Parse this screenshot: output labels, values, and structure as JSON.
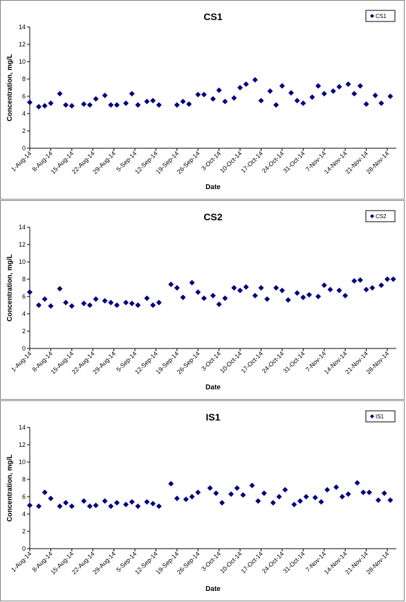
{
  "chart_data": [
    {
      "type": "scatter",
      "title": "CS1",
      "xlabel": "Date",
      "ylabel": "Concentration, mg/L",
      "ylim": [
        0,
        14
      ],
      "yticks": [
        0,
        2,
        4,
        6,
        8,
        10,
        12,
        14
      ],
      "xlim": [
        "2014-08-01",
        "2014-12-01"
      ],
      "xticks": [
        "1-Aug-14",
        "8-Aug-14",
        "15-Aug-14",
        "22-Aug-14",
        "29-Aug-14",
        "5-Sep-14",
        "12-Sep-14",
        "19-Sep-14",
        "26-Sep-14",
        "3-Oct-14",
        "10-Oct-14",
        "17-Oct-14",
        "24-Oct-14",
        "31-Oct-14",
        "7-Nov-14",
        "14-Nov-14",
        "21-Nov-14",
        "28-Nov-14"
      ],
      "legend_position": "top-right",
      "grid": false,
      "series": [
        {
          "name": "CS1",
          "color": "#000080",
          "x": [
            "2014-08-01",
            "2014-08-04",
            "2014-08-06",
            "2014-08-08",
            "2014-08-11",
            "2014-08-13",
            "2014-08-15",
            "2014-08-19",
            "2014-08-21",
            "2014-08-23",
            "2014-08-26",
            "2014-08-28",
            "2014-08-30",
            "2014-09-02",
            "2014-09-04",
            "2014-09-06",
            "2014-09-09",
            "2014-09-11",
            "2014-09-13",
            "2014-09-19",
            "2014-09-21",
            "2014-09-23",
            "2014-09-26",
            "2014-09-28",
            "2014-10-01",
            "2014-10-03",
            "2014-10-05",
            "2014-10-08",
            "2014-10-10",
            "2014-10-12",
            "2014-10-15",
            "2014-10-17",
            "2014-10-20",
            "2014-10-22",
            "2014-10-24",
            "2014-10-27",
            "2014-10-29",
            "2014-10-31",
            "2014-11-03",
            "2014-11-05",
            "2014-11-07",
            "2014-11-10",
            "2014-11-12",
            "2014-11-15",
            "2014-11-17",
            "2014-11-19",
            "2014-11-21",
            "2014-11-24",
            "2014-11-26",
            "2014-11-29"
          ],
          "y": [
            5.3,
            4.8,
            4.9,
            5.2,
            6.3,
            5.0,
            4.9,
            5.1,
            5.0,
            5.7,
            6.1,
            5.0,
            5.0,
            5.2,
            6.3,
            5.0,
            5.4,
            5.5,
            5.0,
            5.0,
            5.4,
            5.1,
            6.2,
            6.2,
            5.7,
            6.7,
            5.4,
            5.8,
            7.0,
            7.4,
            7.9,
            5.5,
            6.6,
            5.0,
            7.2,
            6.4,
            5.5,
            5.2,
            5.9,
            7.2,
            6.3,
            6.6,
            7.1,
            7.4,
            6.3,
            7.2,
            5.1,
            6.1,
            5.2,
            6.0
          ]
        }
      ]
    },
    {
      "type": "scatter",
      "title": "CS2",
      "xlabel": "Date",
      "ylabel": "Concentration, mg/L",
      "ylim": [
        0,
        14
      ],
      "yticks": [
        0,
        2,
        4,
        6,
        8,
        10,
        12,
        14
      ],
      "xlim": [
        "2014-08-01",
        "2014-12-01"
      ],
      "xticks": [
        "1-Aug-14",
        "8-Aug-14",
        "15-Aug-14",
        "22-Aug-14",
        "29-Aug-14",
        "5-Sep-14",
        "12-Sep-14",
        "19-Sep-14",
        "26-Sep-14",
        "3-Oct-14",
        "10-Oct-14",
        "17-Oct-14",
        "24-Oct-14",
        "31-Oct-14",
        "7-Nov-14",
        "14-Nov-14",
        "21-Nov-14",
        "28-Nov-14"
      ],
      "legend_position": "top-right",
      "grid": false,
      "series": [
        {
          "name": "CS2",
          "color": "#000080",
          "x": [
            "2014-08-01",
            "2014-08-04",
            "2014-08-06",
            "2014-08-08",
            "2014-08-11",
            "2014-08-13",
            "2014-08-15",
            "2014-08-19",
            "2014-08-21",
            "2014-08-23",
            "2014-08-26",
            "2014-08-28",
            "2014-08-30",
            "2014-09-02",
            "2014-09-04",
            "2014-09-06",
            "2014-09-09",
            "2014-09-11",
            "2014-09-13",
            "2014-09-17",
            "2014-09-19",
            "2014-09-21",
            "2014-09-24",
            "2014-09-26",
            "2014-09-28",
            "2014-10-01",
            "2014-10-03",
            "2014-10-05",
            "2014-10-08",
            "2014-10-10",
            "2014-10-12",
            "2014-10-15",
            "2014-10-17",
            "2014-10-19",
            "2014-10-22",
            "2014-10-24",
            "2014-10-26",
            "2014-10-29",
            "2014-10-31",
            "2014-11-02",
            "2014-11-05",
            "2014-11-07",
            "2014-11-09",
            "2014-11-12",
            "2014-11-14",
            "2014-11-17",
            "2014-11-19",
            "2014-11-21",
            "2014-11-23",
            "2014-11-26",
            "2014-11-28",
            "2014-11-30"
          ],
          "y": [
            6.5,
            5.0,
            5.7,
            4.9,
            6.9,
            5.3,
            4.9,
            5.2,
            5.0,
            5.7,
            5.5,
            5.3,
            5.0,
            5.3,
            5.2,
            5.0,
            5.8,
            5.0,
            5.3,
            7.4,
            7.0,
            5.9,
            7.6,
            6.5,
            5.8,
            6.1,
            5.1,
            5.8,
            7.0,
            6.7,
            7.1,
            6.1,
            7.0,
            5.7,
            7.0,
            6.7,
            5.6,
            6.4,
            5.9,
            6.2,
            6.0,
            7.3,
            6.8,
            6.7,
            6.1,
            7.8,
            7.9,
            6.8,
            7.0,
            7.3,
            8.0,
            8.0
          ]
        }
      ]
    },
    {
      "type": "scatter",
      "title": "IS1",
      "xlabel": "Date",
      "ylabel": "Concentration, mg/L",
      "ylim": [
        0,
        14
      ],
      "yticks": [
        0,
        2,
        4,
        6,
        8,
        10,
        12,
        14
      ],
      "xlim": [
        "2014-08-01",
        "2014-12-01"
      ],
      "xticks": [
        "1-Aug-14",
        "8-Aug-14",
        "15-Aug-14",
        "22-Aug-14",
        "29-Aug-14",
        "5-Sep-14",
        "12-Sep-14",
        "19-Sep-14",
        "26-Sep-14",
        "3-Oct-14",
        "10-Oct-14",
        "17-Oct-14",
        "24-Oct-14",
        "31-Oct-14",
        "7-Nov-14",
        "14-Nov-14",
        "21-Nov-14",
        "28-Nov-14"
      ],
      "legend_position": "top-right",
      "grid": false,
      "series": [
        {
          "name": "IS1",
          "color": "#000080",
          "x": [
            "2014-08-01",
            "2014-08-04",
            "2014-08-06",
            "2014-08-08",
            "2014-08-11",
            "2014-08-13",
            "2014-08-15",
            "2014-08-19",
            "2014-08-21",
            "2014-08-23",
            "2014-08-26",
            "2014-08-28",
            "2014-08-30",
            "2014-09-02",
            "2014-09-04",
            "2014-09-06",
            "2014-09-09",
            "2014-09-11",
            "2014-09-13",
            "2014-09-17",
            "2014-09-19",
            "2014-09-22",
            "2014-09-24",
            "2014-09-26",
            "2014-09-30",
            "2014-10-02",
            "2014-10-04",
            "2014-10-07",
            "2014-10-09",
            "2014-10-11",
            "2014-10-14",
            "2014-10-16",
            "2014-10-18",
            "2014-10-21",
            "2014-10-23",
            "2014-10-25",
            "2014-10-28",
            "2014-10-30",
            "2014-11-01",
            "2014-11-04",
            "2014-11-06",
            "2014-11-08",
            "2014-11-11",
            "2014-11-13",
            "2014-11-15",
            "2014-11-18",
            "2014-11-20",
            "2014-11-22",
            "2014-11-25",
            "2014-11-27",
            "2014-11-29"
          ],
          "y": [
            5.0,
            4.9,
            6.5,
            5.8,
            4.9,
            5.3,
            4.9,
            5.5,
            4.9,
            5.0,
            5.5,
            4.9,
            5.3,
            5.1,
            5.4,
            4.9,
            5.4,
            5.2,
            4.9,
            7.5,
            5.8,
            5.7,
            6.0,
            6.5,
            7.0,
            6.4,
            5.3,
            6.3,
            7.0,
            6.2,
            7.3,
            5.5,
            6.4,
            5.3,
            6.0,
            6.8,
            5.1,
            5.5,
            6.0,
            5.9,
            5.4,
            6.8,
            7.1,
            6.0,
            6.3,
            7.6,
            6.5,
            6.5,
            5.6,
            6.4,
            5.6
          ]
        }
      ]
    }
  ]
}
